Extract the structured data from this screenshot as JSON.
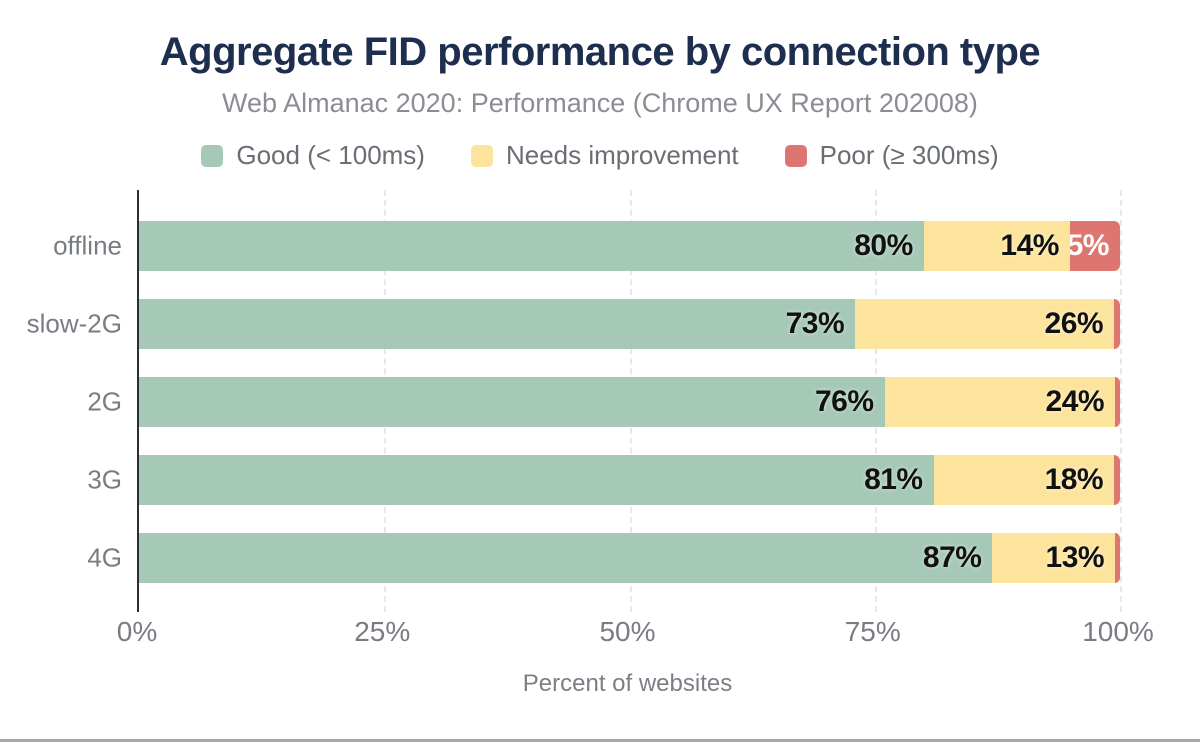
{
  "header": {
    "title": "Aggregate FID performance by connection type",
    "subtitle": "Web Almanac 2020: Performance (Chrome UX Report 202008)"
  },
  "chart_data": {
    "type": "bar",
    "variant": "horizontal-stacked",
    "title": "Aggregate FID performance by connection type",
    "subtitle": "Web Almanac 2020: Performance (Chrome UX Report 202008)",
    "categories": [
      "offline",
      "slow-2G",
      "2G",
      "3G",
      "4G"
    ],
    "series": [
      {
        "name": "Good (< 100ms)",
        "color": "#a5c8b7",
        "label_color": "#111111",
        "values": [
          80,
          73,
          76,
          81,
          87
        ]
      },
      {
        "name": "Needs improvement",
        "color": "#fde49c",
        "label_color": "#111111",
        "values": [
          14,
          26,
          24,
          18,
          13
        ]
      },
      {
        "name": "Poor (≥ 300ms)",
        "color": "#dd7670",
        "label_color": "#ffffff",
        "values": [
          5.1,
          0.6,
          0.5,
          0.6,
          0.5
        ]
      }
    ],
    "value_suffix": "%",
    "min_value_to_label": 4.5,
    "xlabel": "Percent of websites",
    "x_ticks": [
      {
        "label": "0%",
        "value": 0
      },
      {
        "label": "25%",
        "value": 25
      },
      {
        "label": "50%",
        "value": 50
      },
      {
        "label": "75%",
        "value": 75
      },
      {
        "label": "100%",
        "value": 100
      }
    ],
    "xlim": [
      0,
      100
    ],
    "legend_position": "top",
    "grid": "vertical-dashed"
  },
  "palette": {
    "title_text": "#1e2e4f",
    "subtitle_text": "#8a8e94",
    "legend_text": "#696e74",
    "axis_line": "#2b2f34",
    "tick_text": "#797d83",
    "gridline": "#e6e8e9",
    "value_label_dark": "#111111",
    "value_label_light": "#ffffff",
    "bottom_rule": "#a3a7a9",
    "background": "#ffffff"
  }
}
